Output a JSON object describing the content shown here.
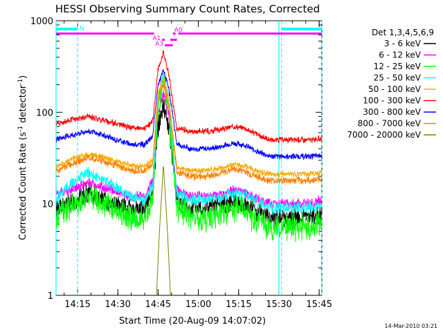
{
  "chart_data": {
    "type": "line",
    "title": "HESSI Observing Summary Count Rates, Corrected",
    "xlabel": "Start Time (20-Aug-09 14:07:02)",
    "ylabel_main": "Corrected Count Rate (s",
    "ylabel_sup1": "-1",
    "ylabel_mid": " detector",
    "ylabel_sup2": "-1",
    "ylabel_end": ")",
    "footer": "14-Mar-2010 03:21",
    "y_scale": "log",
    "ylim": [
      1,
      1000
    ],
    "xlim_minutes": [
      0,
      99
    ],
    "x_tick_labels": [
      {
        "label": "14:15",
        "t": 8
      },
      {
        "label": "14:30",
        "t": 23
      },
      {
        "label": "14:45",
        "t": 38
      },
      {
        "label": "15:00",
        "t": 53
      },
      {
        "label": "15:15",
        "t": 68
      },
      {
        "label": "15:30",
        "t": 83
      },
      {
        "label": "15:45",
        "t": 98
      }
    ],
    "y_tick_labels": [
      {
        "label": "1",
        "v": 1
      },
      {
        "label": "10",
        "v": 10
      },
      {
        "label": "100",
        "v": 100
      },
      {
        "label": "1000",
        "v": 1000
      }
    ],
    "legend_title": "Det 1,3,4,5,6,9",
    "legend_position": "right",
    "series": [
      {
        "name": "3 - 6 keV",
        "color": "#000000",
        "noise": 0.14,
        "points": [
          [
            0,
            9
          ],
          [
            5,
            10
          ],
          [
            12,
            13
          ],
          [
            18,
            11
          ],
          [
            28,
            8.5
          ],
          [
            33,
            9
          ],
          [
            36,
            14
          ],
          [
            38,
            70
          ],
          [
            40,
            118
          ],
          [
            42,
            70
          ],
          [
            45,
            11
          ],
          [
            50,
            9
          ],
          [
            55,
            9
          ],
          [
            60,
            9.5
          ],
          [
            66,
            11
          ],
          [
            70,
            10
          ],
          [
            76,
            8
          ],
          [
            80,
            7
          ],
          [
            88,
            7
          ],
          [
            95,
            7
          ],
          [
            99,
            7.5
          ]
        ]
      },
      {
        "name": "6 - 12 keV",
        "color": "#ff00ff",
        "noise": 0.07,
        "points": [
          [
            0,
            13
          ],
          [
            5,
            14
          ],
          [
            12,
            17
          ],
          [
            18,
            15
          ],
          [
            28,
            12
          ],
          [
            33,
            12
          ],
          [
            36,
            18
          ],
          [
            38,
            95
          ],
          [
            40,
            165
          ],
          [
            42,
            90
          ],
          [
            45,
            14
          ],
          [
            50,
            12
          ],
          [
            55,
            12
          ],
          [
            60,
            12.5
          ],
          [
            66,
            14
          ],
          [
            70,
            13.5
          ],
          [
            76,
            11
          ],
          [
            80,
            10
          ],
          [
            88,
            10
          ],
          [
            95,
            10
          ],
          [
            99,
            11
          ]
        ]
      },
      {
        "name": "12 - 25 keV",
        "color": "#00ff00",
        "noise": 0.18,
        "points": [
          [
            0,
            7
          ],
          [
            5,
            9
          ],
          [
            12,
            12
          ],
          [
            18,
            10
          ],
          [
            28,
            7
          ],
          [
            33,
            7
          ],
          [
            36,
            11
          ],
          [
            38,
            120
          ],
          [
            40,
            220
          ],
          [
            42,
            110
          ],
          [
            45,
            9
          ],
          [
            50,
            7.5
          ],
          [
            55,
            7
          ],
          [
            60,
            7.5
          ],
          [
            66,
            9
          ],
          [
            70,
            8.5
          ],
          [
            76,
            6
          ],
          [
            80,
            5.5
          ],
          [
            88,
            5.5
          ],
          [
            95,
            5.5
          ],
          [
            99,
            6
          ]
        ]
      },
      {
        "name": "25 - 50 keV",
        "color": "#00ffff",
        "noise": 0.08,
        "points": [
          [
            0,
            11
          ],
          [
            5,
            16
          ],
          [
            12,
            22
          ],
          [
            18,
            18
          ],
          [
            28,
            12
          ],
          [
            33,
            11
          ],
          [
            36,
            16
          ],
          [
            38,
            140
          ],
          [
            40,
            250
          ],
          [
            42,
            130
          ],
          [
            45,
            13
          ],
          [
            50,
            11
          ],
          [
            55,
            11
          ],
          [
            60,
            11.5
          ],
          [
            66,
            13
          ],
          [
            70,
            12.5
          ],
          [
            76,
            10
          ],
          [
            80,
            9
          ],
          [
            88,
            9
          ],
          [
            95,
            9
          ],
          [
            99,
            9.5
          ]
        ]
      },
      {
        "name": "50 - 100 keV",
        "color": "#ffaa00",
        "noise": 0.04,
        "points": [
          [
            0,
            25
          ],
          [
            5,
            30
          ],
          [
            12,
            35
          ],
          [
            18,
            32
          ],
          [
            28,
            26
          ],
          [
            33,
            26
          ],
          [
            36,
            30
          ],
          [
            38,
            160
          ],
          [
            40,
            240
          ],
          [
            42,
            140
          ],
          [
            45,
            25
          ],
          [
            50,
            23
          ],
          [
            55,
            23
          ],
          [
            60,
            24
          ],
          [
            66,
            27
          ],
          [
            70,
            26
          ],
          [
            76,
            22
          ],
          [
            80,
            21
          ],
          [
            88,
            21
          ],
          [
            95,
            21
          ],
          [
            99,
            22
          ]
        ]
      },
      {
        "name": "100 - 300 keV",
        "color": "#ff0000",
        "noise": 0.04,
        "points": [
          [
            0,
            75
          ],
          [
            5,
            82
          ],
          [
            12,
            90
          ],
          [
            18,
            82
          ],
          [
            28,
            68
          ],
          [
            33,
            66
          ],
          [
            36,
            80
          ],
          [
            38,
            300
          ],
          [
            40,
            450
          ],
          [
            42,
            260
          ],
          [
            45,
            66
          ],
          [
            50,
            62
          ],
          [
            55,
            62
          ],
          [
            60,
            64
          ],
          [
            66,
            70
          ],
          [
            70,
            68
          ],
          [
            76,
            55
          ],
          [
            80,
            50
          ],
          [
            88,
            50
          ],
          [
            95,
            50
          ],
          [
            99,
            52
          ]
        ]
      },
      {
        "name": "300 - 800 keV",
        "color": "#0000ff",
        "noise": 0.04,
        "points": [
          [
            0,
            50
          ],
          [
            5,
            56
          ],
          [
            12,
            62
          ],
          [
            18,
            55
          ],
          [
            28,
            45
          ],
          [
            33,
            44
          ],
          [
            36,
            55
          ],
          [
            38,
            200
          ],
          [
            40,
            290
          ],
          [
            42,
            180
          ],
          [
            45,
            45
          ],
          [
            50,
            40
          ],
          [
            55,
            40
          ],
          [
            60,
            41
          ],
          [
            66,
            46
          ],
          [
            70,
            44
          ],
          [
            76,
            36
          ],
          [
            80,
            33
          ],
          [
            88,
            33
          ],
          [
            95,
            33
          ],
          [
            99,
            34
          ]
        ]
      },
      {
        "name": "800 - 7000 keV",
        "color": "#ff8000",
        "noise": 0.05,
        "points": [
          [
            0,
            22
          ],
          [
            5,
            27
          ],
          [
            12,
            32
          ],
          [
            18,
            29
          ],
          [
            28,
            23
          ],
          [
            33,
            23
          ],
          [
            36,
            27
          ],
          [
            38,
            140
          ],
          [
            40,
            210
          ],
          [
            42,
            120
          ],
          [
            45,
            22
          ],
          [
            50,
            20
          ],
          [
            55,
            20
          ],
          [
            60,
            21
          ],
          [
            66,
            24
          ],
          [
            70,
            23
          ],
          [
            76,
            19
          ],
          [
            80,
            18
          ],
          [
            88,
            18
          ],
          [
            95,
            18
          ],
          [
            99,
            19
          ]
        ]
      },
      {
        "name": "7000 - 20000 keV",
        "color": "#808000",
        "noise": 0.0,
        "points": [
          [
            37.4,
            1
          ],
          [
            38.5,
            5
          ],
          [
            40,
            27
          ],
          [
            41.5,
            5
          ],
          [
            42.6,
            1
          ]
        ]
      }
    ],
    "annotations": {
      "vertical_lines_t": [
        8,
        84,
        99
      ],
      "solid_vertical_lines_t": [
        0,
        83
      ],
      "cyan_bars": [
        {
          "label": "N",
          "t0": 0,
          "t1": 8
        },
        {
          "label": "",
          "t0": 84,
          "t1": 99
        }
      ],
      "magenta_bars": [
        {
          "label": "",
          "t0": 0,
          "t1": 36.5,
          "y_row": 0
        },
        {
          "label": "A0",
          "t0": 43.5,
          "t1": 44.5,
          "y_row": 0
        },
        {
          "label": "",
          "t0": 45.5,
          "t1": 99,
          "y_row": 0
        },
        {
          "label": "A1",
          "t0": 39.5,
          "t1": 40.5,
          "y_row": 1
        },
        {
          "label": "",
          "t0": 42.5,
          "t1": 45,
          "y_row": 1
        },
        {
          "label": "A3",
          "t0": 40.5,
          "t1": 43.5,
          "y_row": 2
        }
      ]
    }
  }
}
